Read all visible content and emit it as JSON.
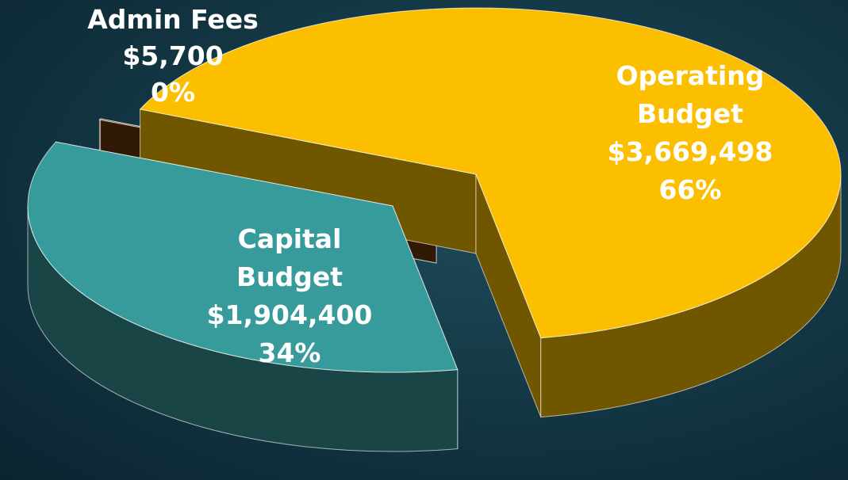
{
  "chart_data": {
    "type": "pie3d",
    "categories": [
      "Operating Budget",
      "Capital Budget",
      "Admin Fees"
    ],
    "values": [
      3669498,
      1904400,
      5700
    ],
    "value_labels": [
      "$3,669,498",
      "$1,904,400",
      "$5,700"
    ],
    "percent_labels": [
      "66%",
      "34%",
      "0%"
    ],
    "colors": [
      "#fbbf00",
      "#379a9b",
      "#6a3a0c"
    ]
  }
}
